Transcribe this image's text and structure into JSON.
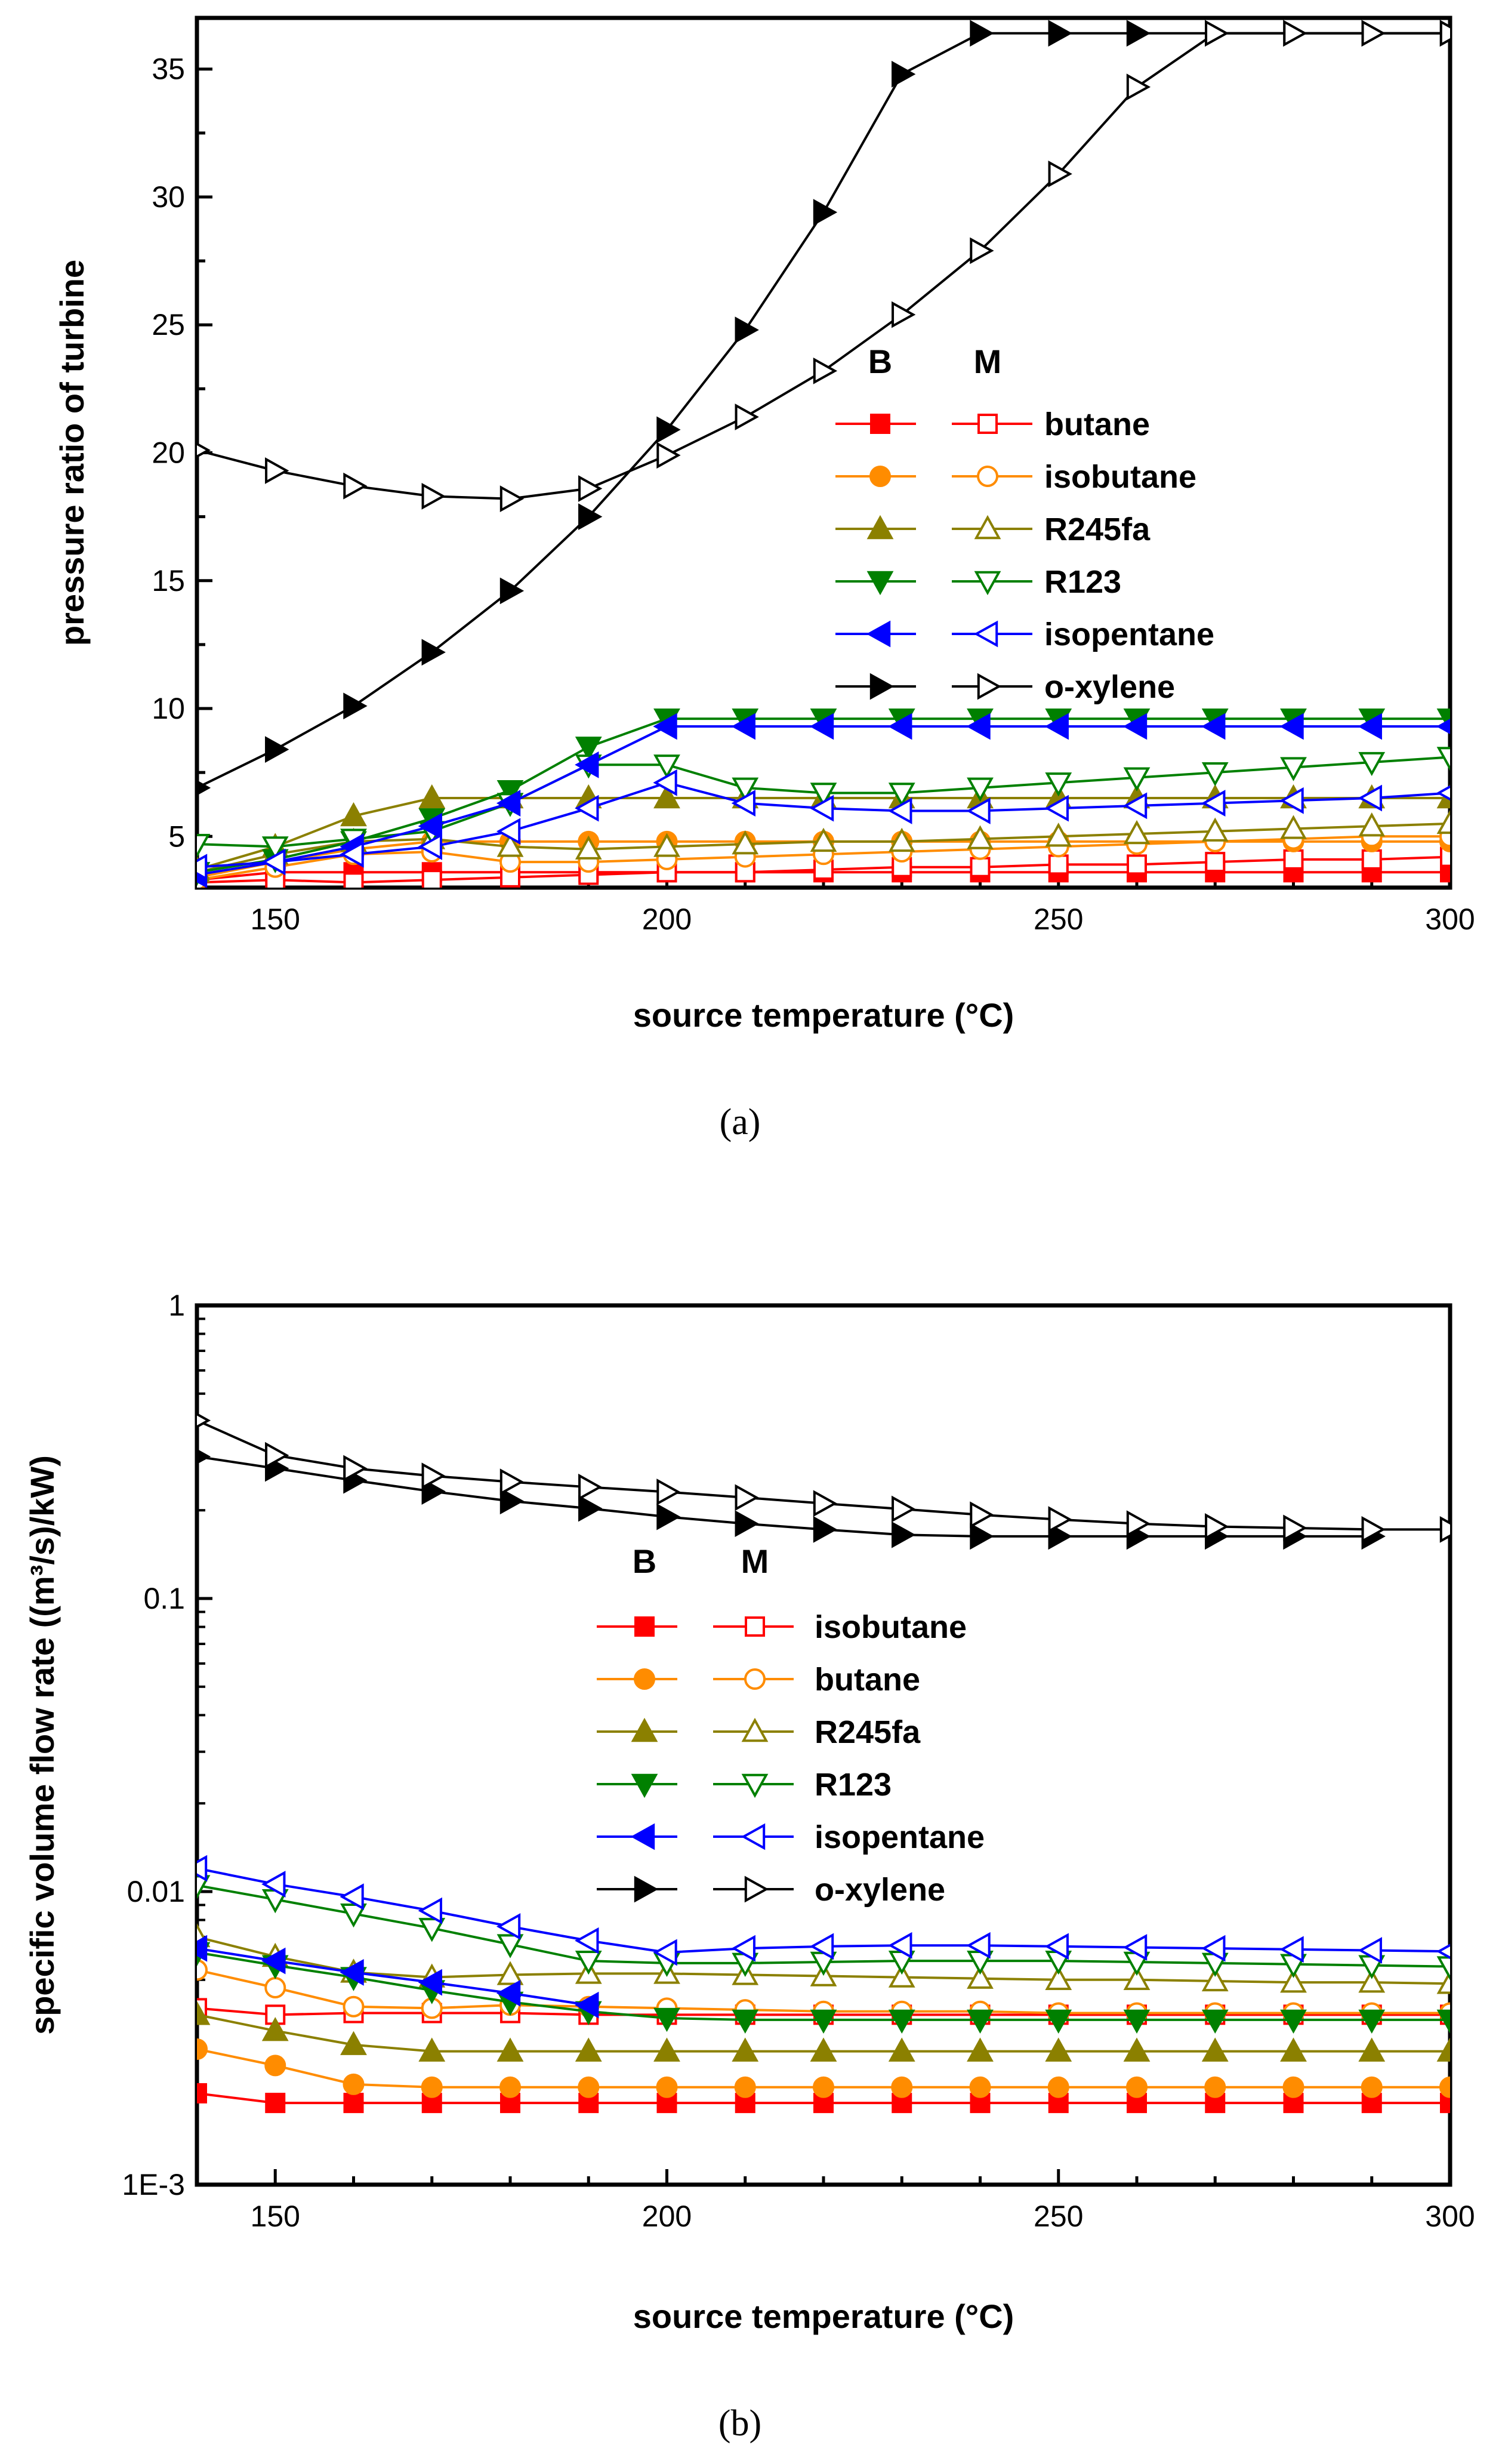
{
  "chart_data": [
    {
      "id": "a",
      "type": "line",
      "panel_label": "(a)",
      "xlabel": "source temperature (°C)",
      "ylabel": "pressure ratio of turbine",
      "xlim": [
        140,
        300
      ],
      "ylim": [
        3,
        37
      ],
      "yscale": "linear",
      "xticks": [
        150,
        200,
        250,
        300
      ],
      "yticks": [
        5,
        10,
        15,
        20,
        25,
        30,
        35
      ],
      "legend": {
        "position": "center-right",
        "headers": [
          "B",
          "M"
        ]
      },
      "series": [
        {
          "name": "butane",
          "color": "#ff0000",
          "marker": "square",
          "x": [
            140,
            150,
            160,
            170,
            180,
            190,
            200,
            210,
            220,
            230,
            240,
            250,
            260,
            270,
            280,
            290,
            300
          ],
          "B": [
            3.3,
            3.6,
            3.6,
            3.6,
            3.6,
            3.6,
            3.6,
            3.6,
            3.6,
            3.6,
            3.6,
            3.6,
            3.6,
            3.6,
            3.6,
            3.6,
            3.6
          ],
          "M": [
            3.2,
            3.3,
            3.2,
            3.3,
            3.4,
            3.5,
            3.6,
            3.6,
            3.7,
            3.8,
            3.8,
            3.9,
            3.9,
            4.0,
            4.1,
            4.1,
            4.2
          ]
        },
        {
          "name": "isobutane",
          "color": "#ff8c00",
          "marker": "circle",
          "x": [
            140,
            150,
            160,
            170,
            180,
            190,
            200,
            210,
            220,
            230,
            240,
            250,
            260,
            270,
            280,
            290,
            300
          ],
          "B": [
            3.4,
            4.0,
            4.5,
            4.8,
            4.8,
            4.8,
            4.8,
            4.8,
            4.8,
            4.8,
            4.8,
            4.8,
            4.8,
            4.8,
            4.8,
            4.8,
            4.8
          ],
          "M": [
            3.3,
            3.8,
            4.3,
            4.4,
            4.0,
            4.0,
            4.1,
            4.2,
            4.3,
            4.4,
            4.5,
            4.6,
            4.7,
            4.8,
            4.9,
            5.0,
            5.0
          ]
        },
        {
          "name": "R245fa",
          "color": "#8b8000",
          "marker": "triangle-up",
          "x": [
            140,
            150,
            160,
            170,
            180,
            190,
            200,
            210,
            220,
            230,
            240,
            250,
            260,
            270,
            280,
            290,
            300
          ],
          "B": [
            3.7,
            4.6,
            5.8,
            6.5,
            6.5,
            6.5,
            6.5,
            6.5,
            6.5,
            6.5,
            6.5,
            6.5,
            6.5,
            6.5,
            6.5,
            6.5,
            6.5
          ],
          "M": [
            3.6,
            4.3,
            4.8,
            4.9,
            4.6,
            4.5,
            4.6,
            4.7,
            4.8,
            4.8,
            4.9,
            5.0,
            5.1,
            5.2,
            5.3,
            5.4,
            5.5
          ]
        },
        {
          "name": "R123",
          "color": "#008000",
          "marker": "triangle-down",
          "x": [
            140,
            150,
            160,
            170,
            180,
            190,
            200,
            210,
            220,
            230,
            240,
            250,
            260,
            270,
            280,
            290,
            300
          ],
          "B": [
            3.6,
            4.1,
            4.8,
            5.7,
            6.8,
            8.5,
            9.6,
            9.6,
            9.6,
            9.6,
            9.6,
            9.6,
            9.6,
            9.6,
            9.6,
            9.6,
            9.6
          ],
          "M": [
            4.7,
            4.6,
            4.9,
            5.2,
            6.3,
            7.8,
            7.8,
            6.9,
            6.7,
            6.7,
            6.9,
            7.1,
            7.3,
            7.5,
            7.7,
            7.9,
            8.1
          ]
        },
        {
          "name": "isopentane",
          "color": "#0000ff",
          "marker": "triangle-left",
          "x": [
            140,
            150,
            160,
            170,
            180,
            190,
            200,
            210,
            220,
            230,
            240,
            250,
            260,
            270,
            280,
            290,
            300
          ],
          "B": [
            3.5,
            4.0,
            4.6,
            5.4,
            6.3,
            7.8,
            9.3,
            9.3,
            9.3,
            9.3,
            9.3,
            9.3,
            9.3,
            9.3,
            9.3,
            9.3,
            9.3
          ],
          "M": [
            3.8,
            4.0,
            4.3,
            4.6,
            5.2,
            6.1,
            7.1,
            6.3,
            6.1,
            6.0,
            6.0,
            6.1,
            6.2,
            6.3,
            6.4,
            6.5,
            6.7
          ]
        },
        {
          "name": "o-xylene",
          "color": "#000000",
          "marker": "triangle-right",
          "x": [
            140,
            150,
            160,
            170,
            180,
            190,
            200,
            210,
            220,
            230,
            240,
            250,
            260,
            270,
            280,
            290,
            300
          ],
          "B": [
            6.9,
            8.4,
            10.1,
            12.2,
            14.6,
            17.5,
            20.9,
            24.8,
            29.4,
            34.8,
            36.4,
            36.4,
            36.4,
            36.4,
            36.4,
            36.4,
            36.4
          ],
          "M": [
            20.1,
            19.3,
            18.7,
            18.3,
            18.2,
            18.6,
            19.9,
            21.4,
            23.2,
            25.4,
            27.9,
            30.9,
            34.3,
            36.4,
            36.4,
            36.4,
            36.4
          ]
        }
      ]
    },
    {
      "id": "b",
      "type": "line",
      "panel_label": "(b)",
      "xlabel": "source temperature (°C)",
      "ylabel": "specific volume flow rate ((m³/s)/kW)",
      "xlim": [
        140,
        300
      ],
      "ylim": [
        0.001,
        1
      ],
      "yscale": "log",
      "xticks": [
        150,
        200,
        250,
        300
      ],
      "yticks": [
        0.001,
        0.01,
        0.1,
        1
      ],
      "ytick_labels": [
        "1E-3",
        "0.01",
        "0.1",
        "1"
      ],
      "legend": {
        "position": "center-left",
        "headers": [
          "B",
          "M"
        ]
      },
      "series": [
        {
          "name": "isobutane",
          "color": "#ff0000",
          "marker": "square",
          "x": [
            140,
            150,
            160,
            170,
            180,
            190,
            200,
            210,
            220,
            230,
            240,
            250,
            260,
            270,
            280,
            290,
            300
          ],
          "B": [
            0.00205,
            0.0019,
            0.0019,
            0.0019,
            0.0019,
            0.0019,
            0.0019,
            0.0019,
            0.0019,
            0.0019,
            0.0019,
            0.0019,
            0.0019,
            0.0019,
            0.0019,
            0.0019,
            0.0019
          ],
          "M": [
            0.004,
            0.0038,
            0.00385,
            0.00385,
            0.00385,
            0.0038,
            0.0038,
            0.0038,
            0.0038,
            0.0038,
            0.0038,
            0.0038,
            0.0038,
            0.0038,
            0.0038,
            0.0038,
            0.0038
          ]
        },
        {
          "name": "butane",
          "color": "#ff8c00",
          "marker": "circle",
          "x": [
            140,
            150,
            160,
            170,
            180,
            190,
            200,
            210,
            220,
            230,
            240,
            250,
            260,
            270,
            280,
            290,
            300
          ],
          "B": [
            0.0029,
            0.00255,
            0.0022,
            0.00215,
            0.00215,
            0.00215,
            0.00215,
            0.00215,
            0.00215,
            0.00215,
            0.00215,
            0.00215,
            0.00215,
            0.00215,
            0.00215,
            0.00215,
            0.00215
          ],
          "M": [
            0.0054,
            0.0047,
            0.00405,
            0.004,
            0.0041,
            0.00405,
            0.004,
            0.00395,
            0.0039,
            0.0039,
            0.0039,
            0.00385,
            0.00385,
            0.00385,
            0.00385,
            0.00385,
            0.00385
          ]
        },
        {
          "name": "R245fa",
          "color": "#8b8000",
          "marker": "triangle-up",
          "x": [
            140,
            150,
            160,
            170,
            180,
            190,
            200,
            210,
            220,
            230,
            240,
            250,
            260,
            270,
            280,
            290,
            300
          ],
          "B": [
            0.0038,
            0.00335,
            0.003,
            0.00285,
            0.00285,
            0.00285,
            0.00285,
            0.00285,
            0.00285,
            0.00285,
            0.00285,
            0.00285,
            0.00285,
            0.00285,
            0.00285,
            0.00285,
            0.00285
          ],
          "M": [
            0.007,
            0.006,
            0.0053,
            0.0051,
            0.0052,
            0.00525,
            0.00525,
            0.0052,
            0.00515,
            0.0051,
            0.00505,
            0.005,
            0.005,
            0.00495,
            0.0049,
            0.0049,
            0.00485
          ]
        },
        {
          "name": "R123",
          "color": "#008000",
          "marker": "triangle-down",
          "x": [
            140,
            150,
            160,
            170,
            180,
            190,
            200,
            210,
            220,
            230,
            240,
            250,
            260,
            270,
            280,
            290,
            300
          ],
          "B": [
            0.0062,
            0.0056,
            0.0051,
            0.0046,
            0.0042,
            0.0039,
            0.0037,
            0.00365,
            0.00365,
            0.00365,
            0.00365,
            0.00365,
            0.00365,
            0.00365,
            0.00365,
            0.00365,
            0.00365
          ],
          "M": [
            0.0105,
            0.0094,
            0.0084,
            0.0075,
            0.0066,
            0.0058,
            0.0057,
            0.0057,
            0.00575,
            0.0058,
            0.0058,
            0.0058,
            0.00575,
            0.0057,
            0.00565,
            0.0056,
            0.00555
          ]
        },
        {
          "name": "isopentane",
          "color": "#0000ff",
          "marker": "triangle-left",
          "x": [
            140,
            150,
            160,
            170,
            180,
            190,
            200,
            210,
            220,
            230,
            240,
            250,
            260,
            270,
            280,
            290,
            300
          ],
          "B": [
            0.0064,
            0.0058,
            0.0053,
            0.0049,
            0.0045,
            0.0041,
            null,
            null,
            null,
            null,
            null,
            null,
            null,
            null,
            null,
            null,
            null
          ],
          "M": [
            0.012,
            0.0106,
            0.0096,
            0.0086,
            0.0076,
            0.0068,
            0.0062,
            0.0064,
            0.0065,
            0.00655,
            0.00655,
            0.0065,
            0.00645,
            0.0064,
            0.00635,
            0.0063,
            0.00625
          ]
        },
        {
          "name": "o-xylene",
          "color": "#000000",
          "marker": "triangle-right",
          "x": [
            140,
            150,
            160,
            170,
            180,
            190,
            200,
            210,
            220,
            230,
            240,
            250,
            260,
            270,
            280,
            290,
            300
          ],
          "B": [
            0.305,
            0.278,
            0.253,
            0.232,
            0.215,
            0.203,
            0.19,
            0.18,
            0.172,
            0.165,
            0.163,
            0.163,
            0.163,
            0.163,
            0.163,
            0.163,
            null
          ],
          "M": [
            0.405,
            0.308,
            0.278,
            0.262,
            0.25,
            0.24,
            0.231,
            0.221,
            0.211,
            0.202,
            0.193,
            0.186,
            0.18,
            0.176,
            0.174,
            0.172,
            0.172
          ]
        }
      ]
    }
  ]
}
